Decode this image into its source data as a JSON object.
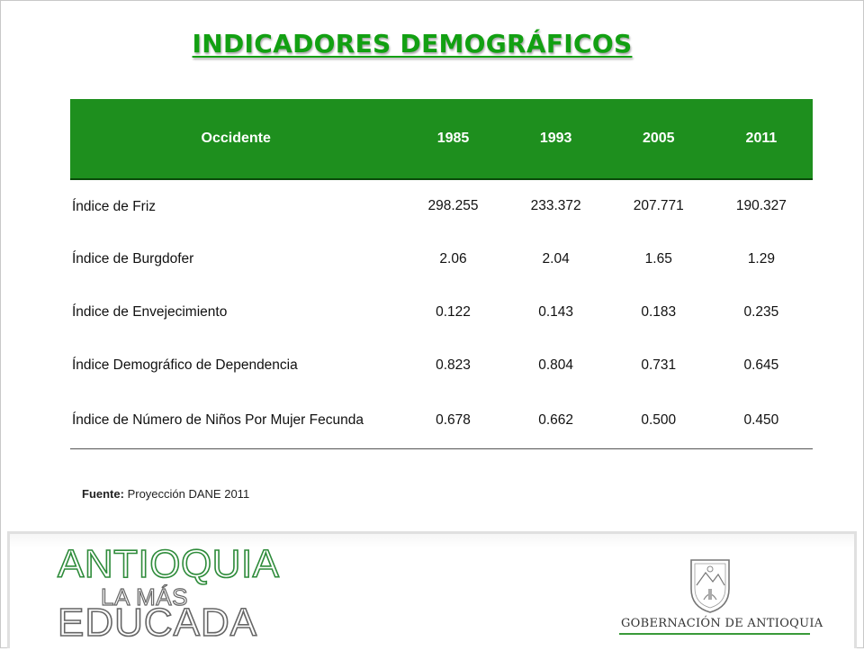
{
  "title": "INDICADORES DEMOGRÁFICOS",
  "table": {
    "header": [
      "Occidente",
      "1985",
      "1993",
      "2005",
      "2011"
    ],
    "rows": [
      {
        "label": "Índice de Friz",
        "values": [
          "298.255",
          "233.372",
          "207.771",
          "190.327"
        ]
      },
      {
        "label": "Índice de Burgdofer",
        "values": [
          "2.06",
          "2.04",
          "1.65",
          "1.29"
        ]
      },
      {
        "label": "Índice de Envejecimiento",
        "values": [
          "0.122",
          "0.143",
          "0.183",
          "0.235"
        ]
      },
      {
        "label": "Índice Demográfico de Dependencia",
        "values": [
          "0.823",
          "0.804",
          "0.731",
          "0.645"
        ]
      },
      {
        "label": "Índice de Número de Niños Por Mujer Fecunda",
        "values": [
          "0.678",
          "0.662",
          "0.500",
          "0.450"
        ]
      }
    ]
  },
  "source": {
    "label": "Fuente:",
    "text": " Proyección DANE 2011"
  },
  "footer": {
    "logo_line1": "ANTIOQUIA",
    "logo_line2": "LA MÁS",
    "logo_line3": "EDUCADA",
    "government": "GOBERNACIÓN DE ANTIOQUIA"
  },
  "colors": {
    "title": "#12a012",
    "header_bg": "#1e8f1e",
    "accent_line": "#3a9a3a"
  }
}
